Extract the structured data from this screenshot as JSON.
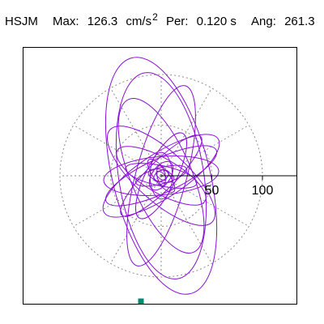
{
  "header": {
    "station": "HSJM",
    "max_label": "Max:",
    "max_value": "126.3",
    "max_unit": "cm/s",
    "max_exponent": "2",
    "per_label": "Per:",
    "per_value": "0.120 s",
    "ang_label": "Ang:",
    "ang_value": "261.3"
  },
  "chart_data": {
    "type": "scatter",
    "title": "HSJM  Max: 126.3 cm/s2  Per: 0.120 s  Ang: 261.3",
    "coordinate_system": "polar",
    "radial_ticks": [
      50,
      100
    ],
    "radial_tick_labels": [
      "50",
      "100"
    ],
    "rings": [
      50,
      100
    ],
    "spokes_deg": [
      0,
      30,
      60,
      90,
      120,
      150,
      180,
      210,
      240,
      270,
      300,
      330
    ],
    "r_max_visible": 128,
    "grid": true,
    "series": [
      {
        "color": "#8a10d8",
        "ellipses": [
          {
            "semi_major": 120,
            "semi_minor": 48,
            "angle_deg": 104
          },
          {
            "semi_major": 103,
            "semi_minor": 42,
            "angle_deg": 99
          },
          {
            "semi_major": 92,
            "semi_minor": 25,
            "angle_deg": 75
          },
          {
            "semi_major": 82,
            "semi_minor": 30,
            "angle_deg": 113
          },
          {
            "semi_major": 60,
            "semi_minor": 17,
            "angle_deg": 25
          },
          {
            "semi_major": 67,
            "semi_minor": 22,
            "angle_deg": 33
          },
          {
            "semi_major": 55,
            "semi_minor": 14,
            "angle_deg": 45
          },
          {
            "semi_major": 57,
            "semi_minor": 19,
            "angle_deg": 5
          },
          {
            "semi_major": 68,
            "semi_minor": 25,
            "angle_deg": 138
          },
          {
            "semi_major": 50,
            "semi_minor": 17,
            "angle_deg": 150
          },
          {
            "semi_major": 47,
            "semi_minor": 15,
            "angle_deg": 63
          },
          {
            "semi_major": 36,
            "semi_minor": 10,
            "angle_deg": 168
          },
          {
            "semi_major": 23,
            "semi_minor": 11,
            "angle_deg": 90
          },
          {
            "semi_major": 26,
            "semi_minor": 8,
            "angle_deg": 15
          },
          {
            "semi_major": 20,
            "semi_minor": 7,
            "angle_deg": 128
          },
          {
            "semi_major": 16,
            "semi_minor": 9,
            "angle_deg": 55
          },
          {
            "semi_major": 13,
            "semi_minor": 6,
            "angle_deg": 165
          },
          {
            "semi_major": 10,
            "semi_minor": 4,
            "angle_deg": 100
          },
          {
            "semi_major": 8,
            "semi_minor": 5,
            "angle_deg": 30
          },
          {
            "semi_major": 6,
            "semi_minor": 3,
            "angle_deg": 140
          }
        ]
      }
    ],
    "max_point": {
      "x": -20,
      "y": -124
    },
    "marker_color": "#008b74"
  }
}
